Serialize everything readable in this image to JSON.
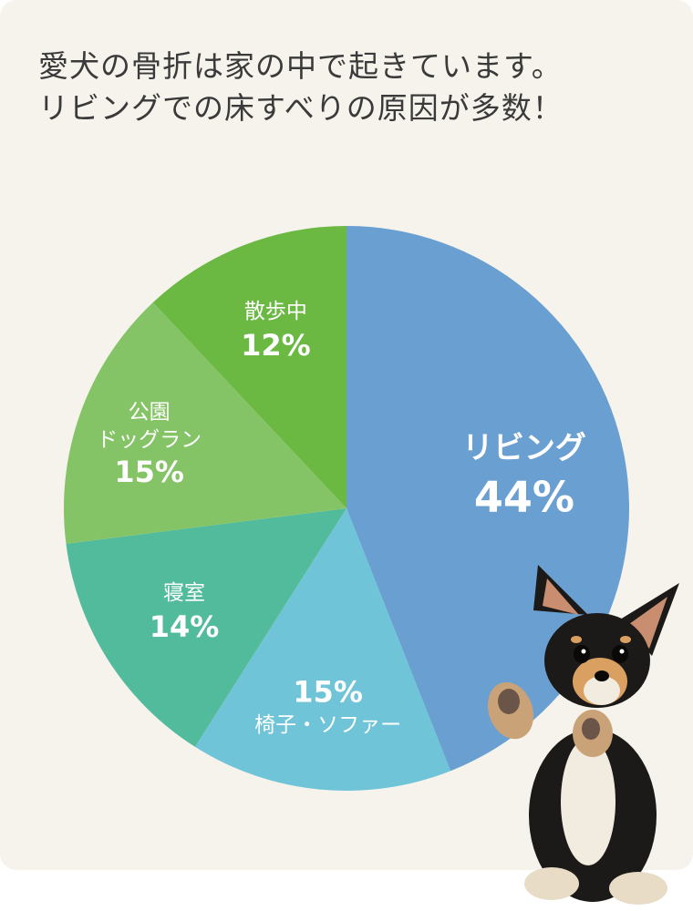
{
  "title_lines": [
    "愛犬の骨折は家の中で起きています。",
    "リビングでの床すべりの原因が多数！"
  ],
  "colors": {
    "background": "#f6f3ec",
    "title": "#3a3a3a",
    "label": "#ffffff"
  },
  "chart_data": {
    "type": "pie",
    "title": "愛犬の骨折は家の中で起きています。リビングでの床すべりの原因が多数！",
    "start": "12 o'clock",
    "direction": "clockwise",
    "value_suffix": "%",
    "slices": [
      {
        "label": [
          "リビング"
        ],
        "value": 44,
        "color": "#6a9fd1"
      },
      {
        "label": [
          "椅子・ソファー"
        ],
        "value": 15,
        "color": "#6fc4d8"
      },
      {
        "label": [
          "寝室"
        ],
        "value": 14,
        "color": "#52bb9c"
      },
      {
        "label": [
          "公園",
          "ドッグラン"
        ],
        "value": 15,
        "color": "#85c466"
      },
      {
        "label": [
          "散歩中"
        ],
        "value": 12,
        "color": "#6bb843"
      }
    ]
  },
  "illustration": {
    "subject": "chihuahua-dog"
  }
}
